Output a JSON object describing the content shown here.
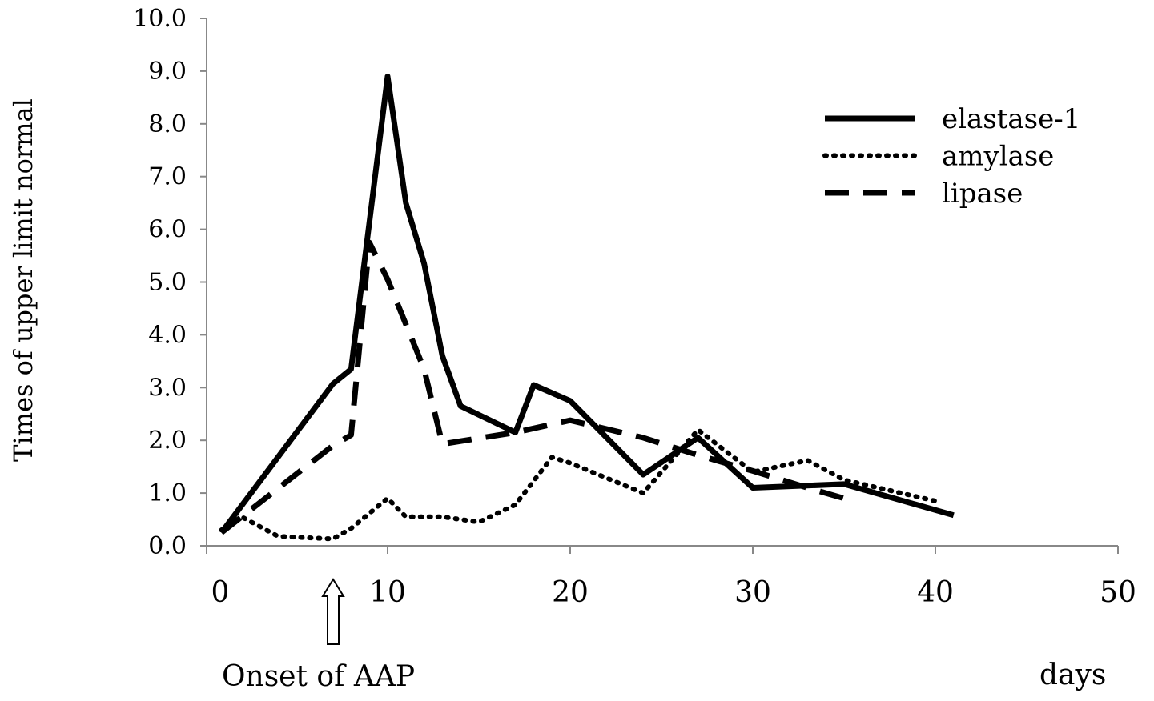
{
  "chart_data": {
    "type": "line",
    "title": "",
    "xlabel": "days",
    "ylabel": "Times of upper limit normal",
    "xlim": [
      0,
      50
    ],
    "ylim": [
      0,
      10
    ],
    "x_ticks": [
      "0",
      "10",
      "20",
      "30",
      "40",
      "50"
    ],
    "x_tick_values": [
      0,
      10,
      20,
      30,
      40,
      50
    ],
    "y_ticks": [
      "0.0",
      "1.0",
      "2.0",
      "3.0",
      "4.0",
      "5.0",
      "6.0",
      "7.0",
      "8.0",
      "9.0",
      "10.0"
    ],
    "y_tick_values": [
      0,
      1,
      2,
      3,
      4,
      5,
      6,
      7,
      8,
      9,
      10
    ],
    "grid": false,
    "legend_position": "top-right",
    "annotation": {
      "label": "Onset of AAP",
      "day": 7
    },
    "series": [
      {
        "name": "elastase-1",
        "style": "solid",
        "x": [
          0.9,
          7,
          8,
          10,
          11,
          12,
          13,
          14,
          17,
          18,
          20,
          24,
          27,
          30,
          35,
          41
        ],
        "y": [
          0.25,
          3.07,
          3.35,
          8.9,
          6.5,
          5.35,
          3.6,
          2.65,
          2.15,
          3.05,
          2.75,
          1.35,
          2.05,
          1.1,
          1.17,
          0.58
        ]
      },
      {
        "name": "amylase",
        "style": "dotted",
        "x": [
          0.9,
          2,
          4,
          7,
          8,
          10,
          11,
          13,
          15,
          17,
          19,
          20,
          24,
          27,
          30,
          33,
          35,
          40
        ],
        "y": [
          0.3,
          0.55,
          0.18,
          0.13,
          0.33,
          0.9,
          0.55,
          0.55,
          0.45,
          0.78,
          1.68,
          1.57,
          1.0,
          2.2,
          1.4,
          1.62,
          1.25,
          0.85
        ]
      },
      {
        "name": "lipase",
        "style": "dashed",
        "x": [
          0.9,
          7,
          8,
          9,
          10,
          12,
          13,
          17,
          20,
          24,
          27,
          30,
          33,
          35
        ],
        "y": [
          0.25,
          1.9,
          2.1,
          5.75,
          5.05,
          3.35,
          1.93,
          2.15,
          2.38,
          2.05,
          1.72,
          1.42,
          1.1,
          0.9
        ]
      }
    ]
  }
}
